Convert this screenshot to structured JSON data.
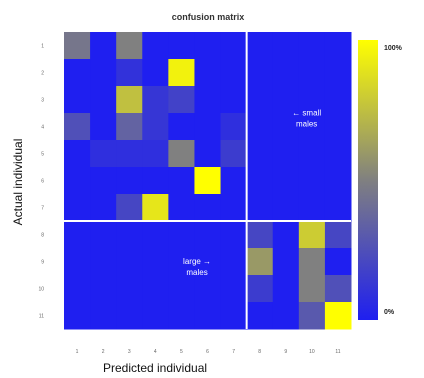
{
  "chart_data": {
    "type": "heatmap",
    "title": "confusion matrix",
    "xlabel": "Predicted individual",
    "ylabel": "Actual individual",
    "x_ticks": [
      "1",
      "2",
      "3",
      "4",
      "5",
      "6",
      "7",
      "8",
      "9",
      "10",
      "11"
    ],
    "y_ticks": [
      "1",
      "2",
      "3",
      "4",
      "5",
      "6",
      "7",
      "8",
      "9",
      "10",
      "11"
    ],
    "values": [
      [
        0.45,
        0,
        0.5,
        0,
        0,
        0,
        0,
        0,
        0,
        0,
        0
      ],
      [
        0,
        0,
        0.1,
        0,
        0.95,
        0,
        0,
        0,
        0,
        0,
        0
      ],
      [
        0,
        0,
        0.75,
        0.12,
        0.18,
        0,
        0,
        0,
        0,
        0,
        0
      ],
      [
        0.25,
        0,
        0.35,
        0.12,
        0,
        0,
        0.08,
        0,
        0,
        0,
        0
      ],
      [
        0,
        0.08,
        0.08,
        0.08,
        0.5,
        0,
        0.15,
        0,
        0,
        0,
        0
      ],
      [
        0,
        0,
        0,
        0,
        0,
        1.0,
        0,
        0,
        0,
        0,
        0
      ],
      [
        0,
        0,
        0.2,
        0.9,
        0,
        0,
        0,
        0,
        0,
        0,
        0
      ],
      [
        0,
        0,
        0,
        0,
        0,
        0,
        0,
        0.2,
        0,
        0.8,
        0.2
      ],
      [
        0,
        0,
        0,
        0,
        0,
        0,
        0,
        0.6,
        0,
        0.5,
        0
      ],
      [
        0,
        0,
        0,
        0,
        0,
        0,
        0,
        0.15,
        0,
        0.5,
        0.25
      ],
      [
        0,
        0,
        0,
        0,
        0,
        0,
        0,
        0,
        0,
        0.3,
        1.0
      ]
    ],
    "vmin": 0,
    "vmax": 1,
    "divider_after_index": 7,
    "colorbar": {
      "top_label": "100%",
      "bottom_label": "0%",
      "colors": [
        "#1f1ff0",
        "#808080",
        "#ffff00"
      ]
    },
    "annotations": [
      {
        "text_lines": [
          "← small",
          "males"
        ]
      },
      {
        "text_lines": [
          "large →",
          "males"
        ]
      }
    ],
    "grid": false,
    "legend": "colorbar-right"
  }
}
